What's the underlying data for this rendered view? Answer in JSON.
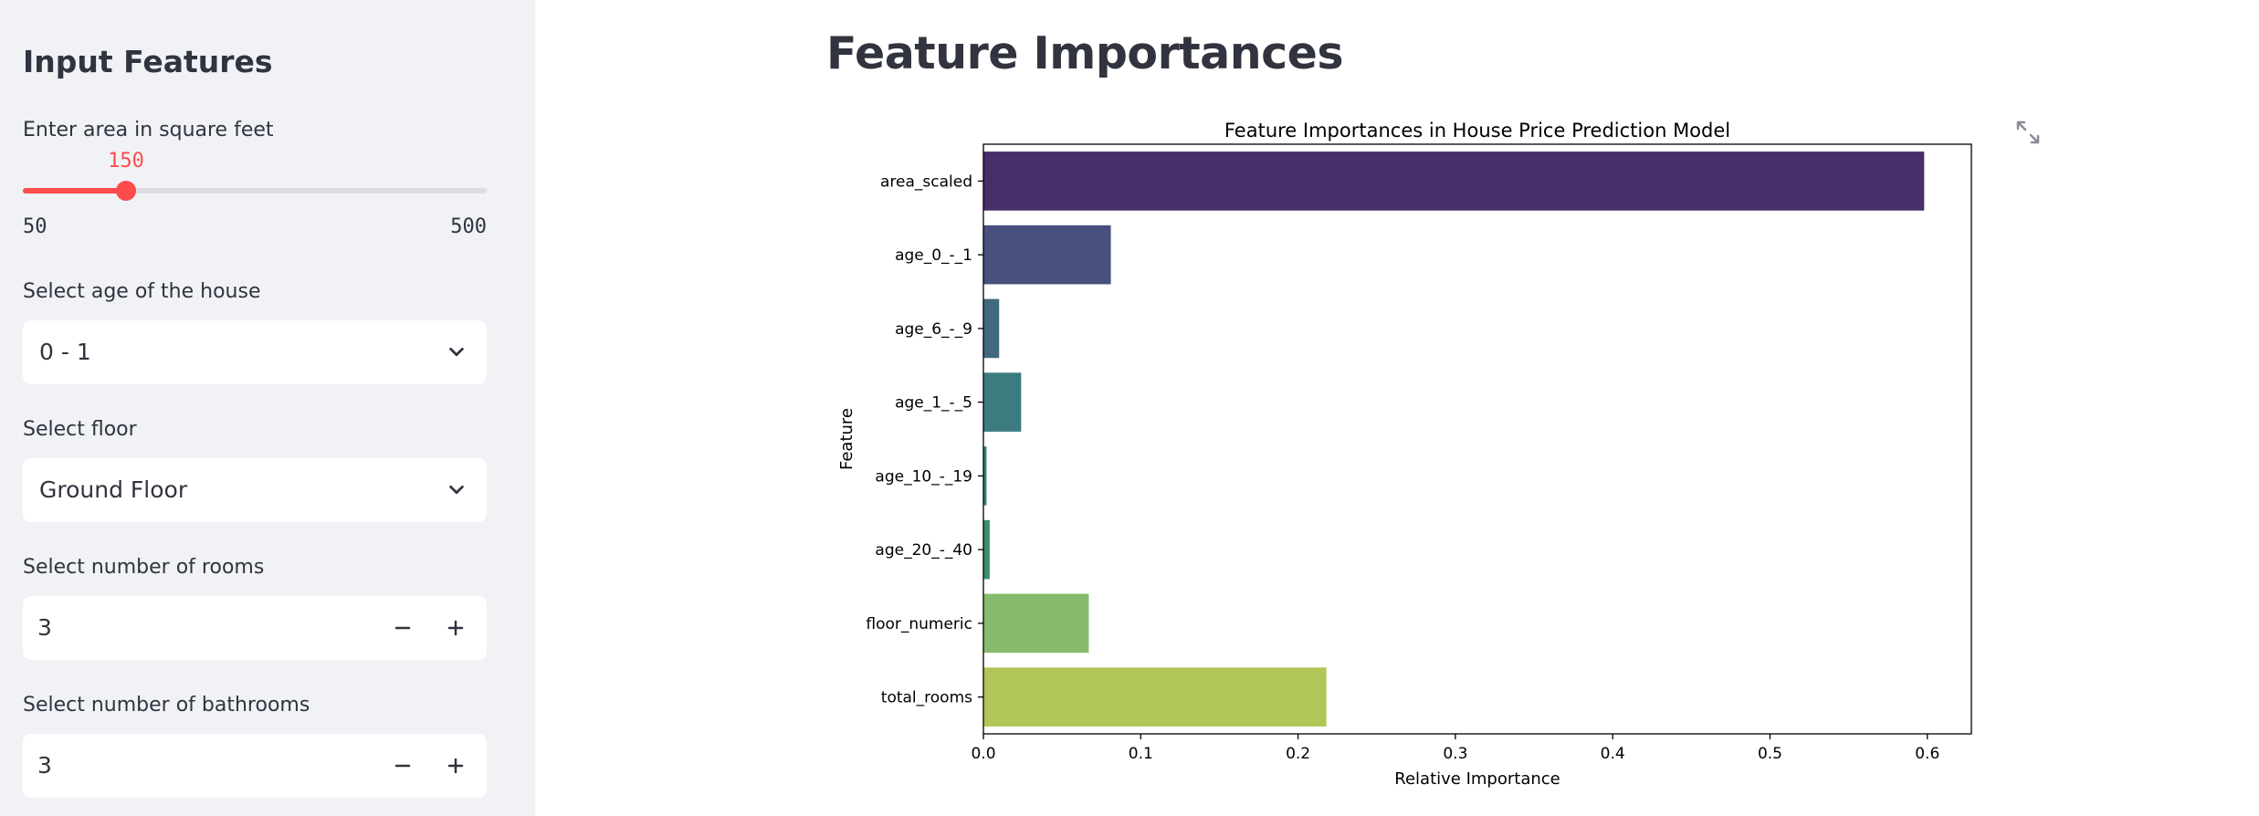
{
  "sidebar": {
    "title": "Input Features",
    "area": {
      "label": "Enter area in square feet",
      "value": "150",
      "min": "50",
      "max": "500",
      "value_num": 150,
      "min_num": 50,
      "max_num": 500
    },
    "age": {
      "label": "Select age of the house",
      "selected": "0 - 1"
    },
    "floor": {
      "label": "Select floor",
      "selected": "Ground Floor"
    },
    "rooms": {
      "label": "Select number of rooms",
      "value": "3"
    },
    "bathrooms": {
      "label": "Select number of bathrooms",
      "value": "3"
    }
  },
  "main": {
    "title": "Feature Importances"
  },
  "icons": {
    "dropdown": "chevron-down-icon",
    "decrement": "minus-icon",
    "increment": "plus-icon",
    "fullscreen": "expand-icon"
  },
  "colors": {
    "accent": "#ff4b4b",
    "sidebar_bg": "#f0f2f6"
  },
  "chart_data": {
    "type": "bar",
    "orientation": "horizontal",
    "title": "Feature Importances in House Price Prediction Model",
    "xlabel": "Relative Importance",
    "ylabel": "Feature",
    "categories": [
      "area_scaled",
      "age_0_-_1",
      "age_6_-_9",
      "age_1_-_5",
      "age_10_-_19",
      "age_20_-_40",
      "floor_numeric",
      "total_rooms"
    ],
    "values": [
      0.598,
      0.081,
      0.01,
      0.024,
      0.002,
      0.004,
      0.067,
      0.218
    ],
    "colors": [
      "#482f69",
      "#48507d",
      "#416a80",
      "#3c7c80",
      "#33837a",
      "#3d8f6c",
      "#86bb6d",
      "#b0c657"
    ],
    "xlim": [
      0,
      0.628
    ],
    "xticks": [
      0.0,
      0.1,
      0.2,
      0.3,
      0.4,
      0.5,
      0.6
    ],
    "xtick_labels": [
      "0.0",
      "0.1",
      "0.2",
      "0.3",
      "0.4",
      "0.5",
      "0.6"
    ],
    "grid": false,
    "legend": "none"
  }
}
